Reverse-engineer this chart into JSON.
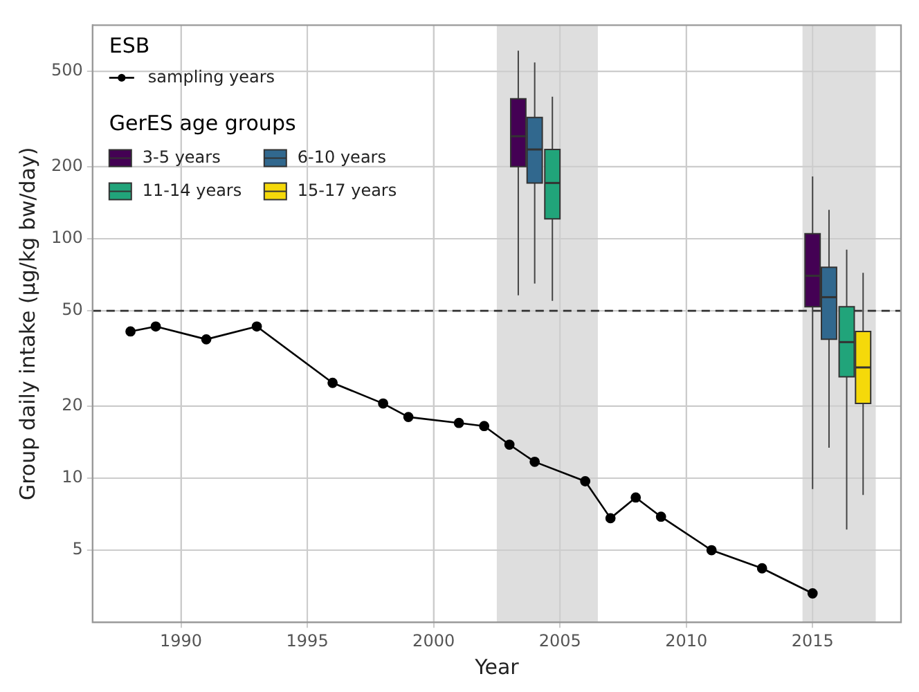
{
  "chart_data": {
    "type": "line",
    "xlabel": "Year",
    "ylabel": "Group daily intake (µg/kg bw/day)",
    "legend_title": "GerES age groups",
    "annotations": [
      "ESB"
    ],
    "xlim": [
      1986.5,
      2018.5
    ],
    "xticks": [
      1990,
      1995,
      2000,
      2005,
      2010,
      2015
    ],
    "ylim": [
      2.5,
      780
    ],
    "yticks": [
      5,
      10,
      20,
      50,
      100,
      200,
      500
    ],
    "log": "y",
    "grid": true,
    "legend": "top left",
    "marker": "circle",
    "line_style": "solid",
    "series": [
      {
        "name": "sampling years",
        "color": "#000000",
        "x": [
          1988,
          1989,
          1991,
          1993,
          1996,
          1998,
          1999,
          2001,
          2002,
          2003,
          2004,
          2006,
          2007,
          2008,
          2009,
          2011,
          2013,
          2015
        ],
        "values": [
          41,
          43,
          38,
          43,
          25,
          20.5,
          18,
          17,
          16.5,
          13.8,
          11.7,
          9.7,
          6.8,
          8.3,
          6.9,
          5,
          4.2,
          3.3
        ]
      },
      {
        "name": "3-5 years",
        "type": "box",
        "color": "#440154",
        "x": [
          2003.35,
          2015
        ],
        "boxes": [
          {
            "low": 58,
            "q1": 200,
            "median": 268,
            "q3": 384,
            "high": 610
          },
          {
            "low": 9,
            "q1": 52,
            "median": 70,
            "q3": 105,
            "high": 182
          }
        ]
      },
      {
        "name": "6-10 years",
        "type": "box",
        "color": "#31688e",
        "x": [
          2004,
          2015.65
        ],
        "boxes": [
          {
            "low": 65,
            "q1": 171,
            "median": 236,
            "q3": 321,
            "high": 545
          },
          {
            "low": 13.4,
            "q1": 38,
            "median": 57,
            "q3": 76,
            "high": 132
          }
        ]
      },
      {
        "name": "11-14 years",
        "type": "box",
        "color": "#21a47a",
        "x": [
          2004.7,
          2016.35
        ],
        "boxes": [
          {
            "low": 55,
            "q1": 121,
            "median": 171,
            "q3": 236,
            "high": 392
          },
          {
            "low": 6.1,
            "q1": 26.5,
            "median": 37,
            "q3": 52,
            "high": 90
          }
        ]
      },
      {
        "name": "15-17 years",
        "type": "box",
        "color": "#f5d90a",
        "x": [
          2017
        ],
        "boxes": [
          {
            "low": 8.5,
            "q1": 20.5,
            "median": 29,
            "q3": 41,
            "high": 72
          }
        ]
      }
    ],
    "ref_lines": [
      {
        "axis": "y",
        "value": 50,
        "color": "#333333",
        "line_style": "dashed"
      }
    ],
    "bands": [
      {
        "axis": "x",
        "from": 2002.5,
        "to": 2006.5,
        "color": "#dedede"
      },
      {
        "axis": "x",
        "from": 2014.6,
        "to": 2017.5,
        "color": "#dedede"
      }
    ]
  }
}
